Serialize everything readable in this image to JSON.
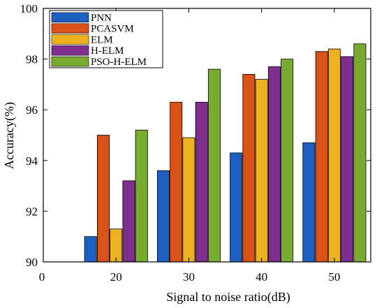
{
  "chart_data": {
    "type": "bar",
    "title": "",
    "xlabel": "Signal to noise ratio(dB)",
    "ylabel": "Accuracy(%)",
    "categories": [
      "20",
      "30",
      "40",
      "50"
    ],
    "xlim": [
      10,
      55
    ],
    "ylim": [
      90,
      100
    ],
    "xticks": [
      "0",
      "20",
      "30",
      "40",
      "50"
    ],
    "yticks": [
      "90",
      "92",
      "94",
      "96",
      "98",
      "100"
    ],
    "grid": false,
    "legend_position": "top-left",
    "series": [
      {
        "name": "PNN",
        "color": "#1f5fbf",
        "values": [
          91.0,
          93.6,
          94.3,
          94.7
        ]
      },
      {
        "name": "PCASVM",
        "color": "#d95319",
        "values": [
          95.0,
          96.3,
          97.4,
          98.3
        ]
      },
      {
        "name": "ELM",
        "color": "#edb120",
        "values": [
          91.3,
          94.9,
          97.2,
          98.4
        ]
      },
      {
        "name": "H-ELM",
        "color": "#7e2f8e",
        "values": [
          93.2,
          96.3,
          97.7,
          98.1
        ]
      },
      {
        "name": "PSO-H-ELM",
        "color": "#77ac30",
        "values": [
          95.2,
          97.6,
          98.0,
          98.6
        ]
      }
    ]
  }
}
